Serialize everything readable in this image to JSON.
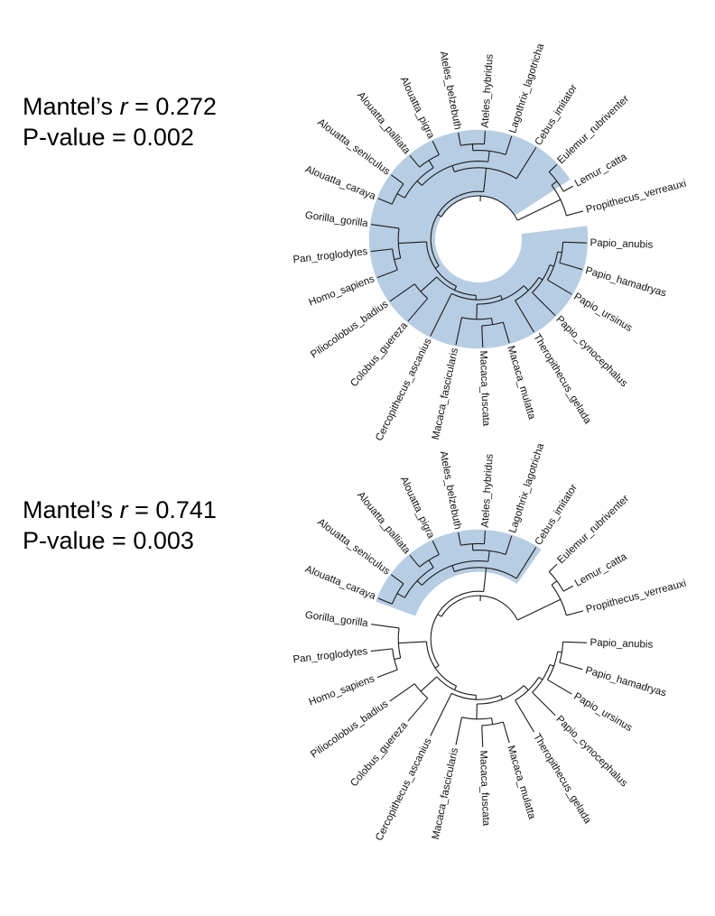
{
  "panels": [
    {
      "stat_prefix": "Mantel’s ",
      "stat_symbol": "r",
      "r_value": " = 0.272",
      "p_value": "P-value = 0.002"
    },
    {
      "stat_prefix": "Mantel’s ",
      "stat_symbol": "r",
      "r_value": " = 0.741",
      "p_value": "P-value = 0.003"
    }
  ],
  "tips": [
    "Papio_anubis",
    "Papio_hamadryas",
    "Papio_ursinus",
    "Papio_cynocephalus",
    "Theropithecus_gelada",
    "Macaca_mulatta",
    "Macaca_fuscata",
    "Macaca_fascicularis",
    "Cercopithecus_ascanius",
    "Colobus_guereza",
    "Piliocolobus_badius",
    "Homo_sapiens",
    "Pan_troglodytes",
    "Gorilla_gorilla",
    "Alouatta_caraya",
    "Alouatta_seniculus",
    "Alouatta_palliata",
    "Alouatta_pigra",
    "Ateles_belzebuth",
    "Ateles_hybridus",
    "Lagothrix_lagotricha",
    "Cebus_imitator",
    "Eulemur_rubriventer",
    "Lemur_catta",
    "Propithecus_verreauxi"
  ],
  "highlight_color": "#b7cde3"
}
